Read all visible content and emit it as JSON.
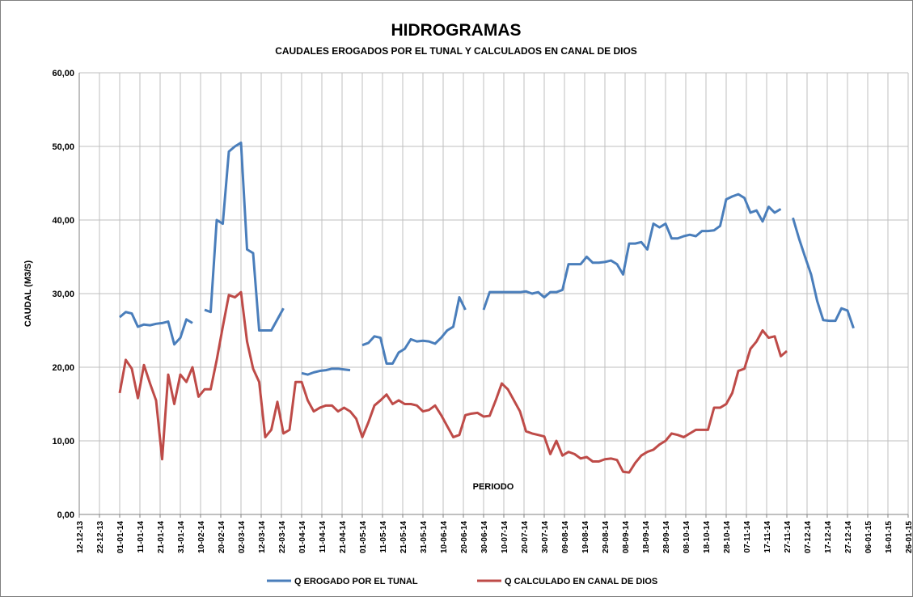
{
  "chart_data": {
    "type": "line",
    "title": "HIDROGRAMAS",
    "subtitle": "CAUDALES EROGADOS POR EL TUNAL Y CALCULADOS EN CANAL DE DIOS",
    "y_label": "CAUDAL (M3/S)",
    "x_label": "PERIODO",
    "grid": true,
    "legend": "bottom",
    "xlim": [
      "12-12-13",
      "26-01-15"
    ],
    "xticks": [
      "12-12-13",
      "22-12-13",
      "01-01-14",
      "11-01-14",
      "21-01-14",
      "31-01-14",
      "10-02-14",
      "20-02-14",
      "02-03-14",
      "12-03-14",
      "22-03-14",
      "01-04-14",
      "11-04-14",
      "21-04-14",
      "01-05-14",
      "11-05-14",
      "21-05-14",
      "31-05-14",
      "10-06-14",
      "20-06-14",
      "30-06-14",
      "10-07-14",
      "20-07-14",
      "30-07-14",
      "09-08-14",
      "19-08-14",
      "29-08-14",
      "08-09-14",
      "18-09-14",
      "28-09-14",
      "08-10-14",
      "18-10-14",
      "28-10-14",
      "07-11-14",
      "17-11-14",
      "27-11-14",
      "07-12-14",
      "17-12-14",
      "27-12-14",
      "06-01-15",
      "16-01-15",
      "26-01-15"
    ],
    "ylim": [
      0,
      60
    ],
    "yticks": [
      {
        "value": 0,
        "label": "0,00"
      },
      {
        "value": 10,
        "label": "10,00"
      },
      {
        "value": 20,
        "label": "20,00"
      },
      {
        "value": 30,
        "label": "30,00"
      },
      {
        "value": 40,
        "label": "40,00"
      },
      {
        "value": 50,
        "label": "50,00"
      },
      {
        "value": 60,
        "label": "60,00"
      }
    ],
    "x": [
      "01-01-14",
      "04-01-14",
      "07-01-14",
      "10-01-14",
      "13-01-14",
      "16-01-14",
      "19-01-14",
      "22-01-14",
      "25-01-14",
      "28-01-14",
      "31-01-14",
      "03-02-14",
      "06-02-14",
      "09-02-14",
      "12-02-14",
      "15-02-14",
      "18-02-14",
      "21-02-14",
      "24-02-14",
      "27-02-14",
      "02-03-14",
      "05-03-14",
      "08-03-14",
      "11-03-14",
      "14-03-14",
      "17-03-14",
      "20-03-14",
      "23-03-14",
      "26-03-14",
      "29-03-14",
      "01-04-14",
      "04-04-14",
      "07-04-14",
      "10-04-14",
      "13-04-14",
      "16-04-14",
      "19-04-14",
      "22-04-14",
      "25-04-14",
      "28-04-14",
      "01-05-14",
      "04-05-14",
      "07-05-14",
      "10-05-14",
      "13-05-14",
      "16-05-14",
      "19-05-14",
      "22-05-14",
      "25-05-14",
      "28-05-14",
      "31-05-14",
      "03-06-14",
      "06-06-14",
      "09-06-14",
      "12-06-14",
      "15-06-14",
      "18-06-14",
      "21-06-14",
      "24-06-14",
      "27-06-14",
      "30-06-14",
      "03-07-14",
      "06-07-14",
      "09-07-14",
      "12-07-14",
      "15-07-14",
      "18-07-14",
      "21-07-14",
      "24-07-14",
      "27-07-14",
      "30-07-14",
      "02-08-14",
      "05-08-14",
      "08-08-14",
      "11-08-14",
      "14-08-14",
      "17-08-14",
      "20-08-14",
      "23-08-14",
      "26-08-14",
      "29-08-14",
      "01-09-14",
      "04-09-14",
      "07-09-14",
      "10-09-14",
      "13-09-14",
      "16-09-14",
      "19-09-14",
      "22-09-14",
      "25-09-14",
      "28-09-14",
      "01-10-14",
      "04-10-14",
      "07-10-14",
      "10-10-14",
      "13-10-14",
      "16-10-14",
      "19-10-14",
      "22-10-14",
      "25-10-14",
      "28-10-14",
      "31-10-14",
      "03-11-14",
      "06-11-14",
      "09-11-14",
      "12-11-14",
      "15-11-14",
      "18-11-14",
      "21-11-14",
      "24-11-14",
      "27-11-14",
      "30-11-14",
      "03-12-14",
      "06-12-14",
      "09-12-14",
      "12-12-14",
      "15-12-14",
      "18-12-14",
      "21-12-14",
      "24-12-14",
      "27-12-14",
      "30-12-14"
    ],
    "series": [
      {
        "name": "Q EROGADO POR EL TUNAL",
        "color": "#4a7ebb",
        "values": [
          26.8,
          27.5,
          27.3,
          25.5,
          25.8,
          25.7,
          25.9,
          26,
          26.2,
          23.1,
          24,
          26.5,
          26,
          null,
          27.8,
          27.5,
          40,
          39.5,
          49.3,
          50,
          50.5,
          36,
          35.5,
          25,
          25,
          25,
          26.5,
          28,
          null,
          null,
          19.2,
          19,
          19.3,
          19.5,
          19.6,
          19.8,
          19.8,
          19.7,
          19.6,
          null,
          23,
          23.3,
          24.2,
          24,
          20.5,
          20.5,
          22,
          22.5,
          23.8,
          23.5,
          23.6,
          23.5,
          23.2,
          24,
          25,
          25.5,
          29.5,
          27.8,
          null,
          null,
          27.8,
          30.2,
          30.2,
          30.2,
          30.2,
          30.2,
          30.2,
          30.3,
          30,
          30.2,
          29.5,
          30.2,
          30.2,
          30.5,
          34,
          34,
          34,
          35,
          34.2,
          34.2,
          34.3,
          34.5,
          34,
          32.6,
          36.8,
          36.8,
          37,
          36,
          39.5,
          39,
          39.5,
          37.5,
          37.5,
          37.8,
          38,
          37.8,
          38.5,
          38.5,
          38.6,
          39.2,
          42.8,
          43.2,
          43.5,
          43,
          41,
          41.3,
          39.8,
          41.8,
          41,
          41.5,
          null,
          40.3,
          37.5,
          35,
          32.6,
          29,
          26.4,
          26.3,
          26.3,
          28,
          27.7,
          25.3
        ]
      },
      {
        "name": "Q CALCULADO EN CANAL DE DIOS",
        "color": "#be4b48",
        "values": [
          16.5,
          21,
          19.8,
          15.8,
          20.3,
          17.8,
          15.5,
          7.5,
          19,
          15,
          19,
          18,
          20,
          16,
          17,
          17,
          21,
          25.5,
          29.8,
          29.5,
          30.2,
          23.5,
          19.8,
          18,
          10.5,
          11.5,
          15.3,
          11,
          11.5,
          18,
          18,
          15.5,
          14,
          14.5,
          14.8,
          14.8,
          14,
          14.5,
          14,
          13,
          10.5,
          12.5,
          14.8,
          15.5,
          16.3,
          15,
          15.5,
          15,
          15,
          14.8,
          14,
          14.2,
          14.8,
          13.5,
          12,
          10.5,
          10.8,
          13.5,
          13.7,
          13.8,
          13.3,
          13.4,
          15.5,
          17.8,
          17,
          15.5,
          14,
          11.3,
          11,
          10.8,
          10.6,
          8.2,
          10,
          8,
          8.5,
          8.2,
          7.6,
          7.8,
          7.2,
          7.2,
          7.5,
          7.6,
          7.4,
          5.8,
          5.7,
          7,
          8,
          8.5,
          8.8,
          9.5,
          10,
          11,
          10.8,
          10.5,
          11,
          11.5,
          11.5,
          11.5,
          14.5,
          14.5,
          15,
          16.5,
          19.5,
          19.8,
          22.5,
          23.5,
          25,
          24,
          24.2,
          21.5,
          22.2,
          null,
          null,
          null,
          null,
          null,
          null,
          null,
          null,
          null,
          null,
          null
        ]
      }
    ]
  }
}
